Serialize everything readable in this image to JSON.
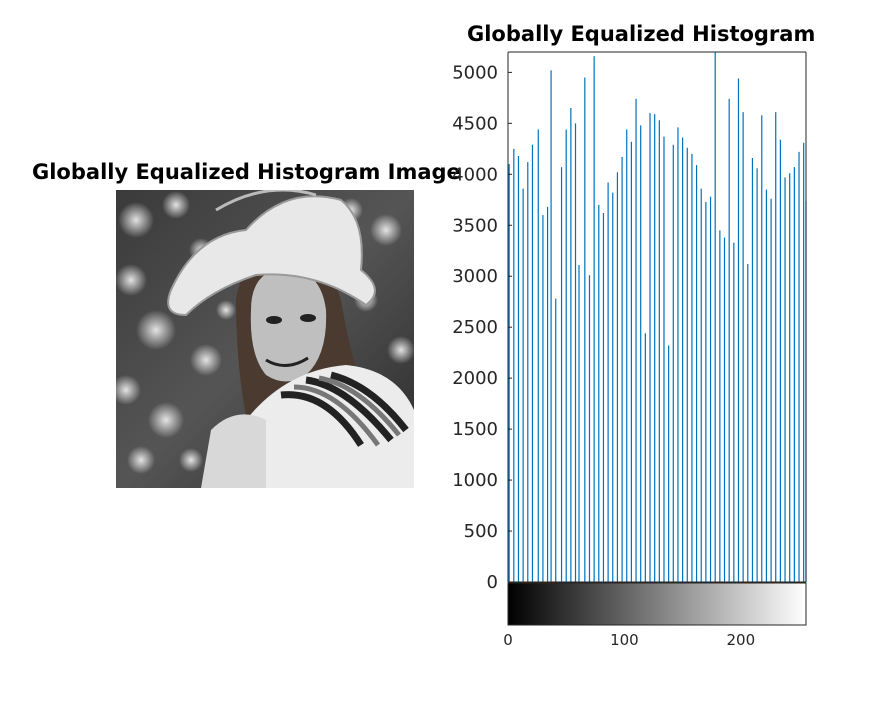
{
  "image_panel": {
    "title": "Globally Equalized Histogram Image"
  },
  "chart_data": {
    "type": "bar",
    "title": "Globally Equalized Histogram",
    "xlabel": "",
    "ylabel": "",
    "xlim": [
      0,
      256
    ],
    "ylim": [
      0,
      5200
    ],
    "yticks": [
      0,
      500,
      1000,
      1500,
      2000,
      2500,
      3000,
      3500,
      4000,
      4500,
      5000
    ],
    "xticks": [
      0,
      100,
      200
    ],
    "grid": false,
    "colorbar": "grayscale",
    "bar_color": "#0072BD",
    "x": [
      1,
      5,
      9,
      13,
      17,
      21,
      26,
      30,
      34,
      37,
      41,
      46,
      50,
      54,
      58,
      61,
      66,
      70,
      74,
      78,
      82,
      86,
      90,
      94,
      98,
      102,
      106,
      110,
      114,
      118,
      122,
      126,
      130,
      134,
      138,
      142,
      146,
      150,
      154,
      158,
      162,
      166,
      170,
      174,
      178,
      182,
      186,
      190,
      194,
      198,
      202,
      206,
      210,
      214,
      218,
      222,
      226,
      230,
      234,
      238,
      242,
      246,
      250,
      254,
      256
    ],
    "values": [
      4100,
      4250,
      4180,
      3860,
      4120,
      4290,
      4440,
      3600,
      3680,
      5020,
      2780,
      4070,
      4440,
      4650,
      4500,
      3110,
      4950,
      3010,
      5160,
      3700,
      3620,
      3920,
      3820,
      4020,
      4170,
      4440,
      4320,
      4740,
      4480,
      2440,
      4600,
      4590,
      4530,
      4370,
      2320,
      4290,
      4460,
      4360,
      4260,
      4200,
      4090,
      3860,
      3730,
      3780,
      5200,
      3450,
      3380,
      4740,
      3330,
      4940,
      4610,
      3120,
      4160,
      4060,
      4580,
      3850,
      3760,
      4610,
      4340,
      3970,
      4010,
      4070,
      4220,
      4310,
      3740
    ]
  }
}
